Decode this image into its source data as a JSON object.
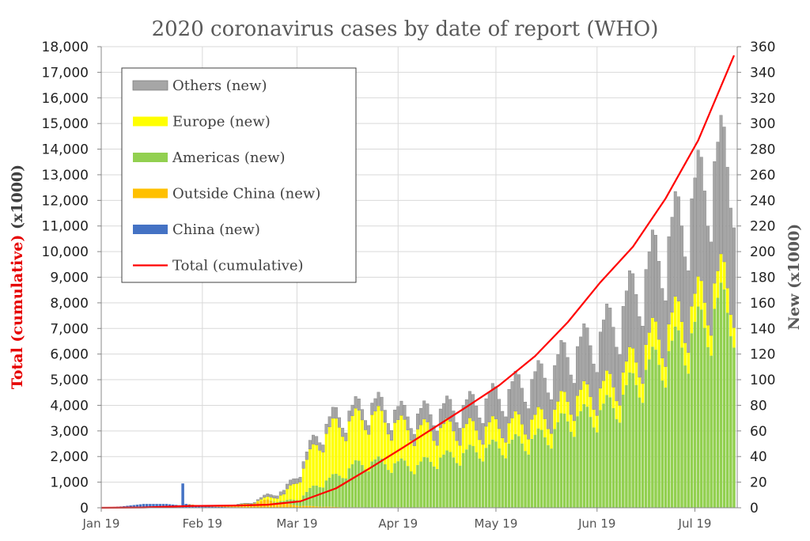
{
  "chart_data": {
    "type": "bar",
    "title": "2020 coronavirus cases by date of report (WHO)",
    "ylabel_left_part1": "Total (cumulative)",
    "ylabel_left_part2": " (x1000)",
    "ylabel_right": "New (x1000)",
    "ylim_left": [
      0,
      18000
    ],
    "ylim_right": [
      0,
      360
    ],
    "y_left_ticks": [
      "0",
      "1,000",
      "2,000",
      "3,000",
      "4,000",
      "5,000",
      "6,000",
      "7,000",
      "8,000",
      "9,000",
      "10,000",
      "11,000",
      "12,000",
      "13,000",
      "14,000",
      "15,000",
      "16,000",
      "17,000",
      "18,000"
    ],
    "y_right_ticks": [
      "0",
      "20",
      "40",
      "60",
      "80",
      "100",
      "120",
      "140",
      "160",
      "180",
      "200",
      "220",
      "240",
      "260",
      "280",
      "300",
      "320",
      "340",
      "360"
    ],
    "x_tick_labels": [
      "Jan 19",
      "Feb 19",
      "Mar 19",
      "Apr 19",
      "May 19",
      "Jun 19",
      "Jul 19"
    ],
    "x_tick_dates": [
      "2020-01-19",
      "2020-02-19",
      "2020-03-19",
      "2020-04-19",
      "2020-05-19",
      "2020-06-19",
      "2020-07-19"
    ],
    "x_range": [
      "2020-01-19",
      "2020-07-31"
    ],
    "grid": true,
    "legend_position": "top-left",
    "legend": [
      {
        "key": "others",
        "label": "Others (new)",
        "color": "#a6a6a6",
        "kind": "bar"
      },
      {
        "key": "europe",
        "label": "Europe (new)",
        "color": "#ffff00",
        "kind": "bar"
      },
      {
        "key": "americas",
        "label": "Americas (new)",
        "color": "#92d050",
        "kind": "bar"
      },
      {
        "key": "outside",
        "label": "Outside China (new)",
        "color": "#ffc000",
        "kind": "bar"
      },
      {
        "key": "china",
        "label": "China (new)",
        "color": "#4472c4",
        "kind": "bar"
      },
      {
        "key": "total",
        "label": "Total (cumulative)",
        "color": "#ff0000",
        "kind": "line"
      }
    ],
    "series_new_keyframes_x1000": {
      "dates": [
        "2020-01-19",
        "2020-01-25",
        "2020-02-01",
        "2020-02-08",
        "2020-02-12",
        "2020-02-13",
        "2020-02-14",
        "2020-02-20",
        "2020-02-27",
        "2020-03-05",
        "2020-03-10",
        "2020-03-15",
        "2020-03-20",
        "2020-03-25",
        "2020-03-31",
        "2020-04-05",
        "2020-04-10",
        "2020-04-15",
        "2020-04-20",
        "2020-04-25",
        "2020-04-30",
        "2020-05-05",
        "2020-05-10",
        "2020-05-15",
        "2020-05-20",
        "2020-05-25",
        "2020-05-31",
        "2020-06-05",
        "2020-06-10",
        "2020-06-15",
        "2020-06-20",
        "2020-06-25",
        "2020-06-30",
        "2020-07-05",
        "2020-07-10",
        "2020-07-15",
        "2020-07-20",
        "2020-07-25",
        "2020-07-31"
      ],
      "china": [
        0,
        1,
        3,
        3,
        2,
        19,
        3,
        1,
        0.5,
        0.3,
        0.1,
        0.1,
        0.1,
        0.1,
        0.1,
        0.1,
        0.1,
        0.1,
        0.1,
        0.1,
        0.1,
        0.1,
        0.1,
        0.1,
        0,
        0,
        0,
        0,
        0,
        0,
        0,
        0,
        0,
        0,
        0,
        0,
        0,
        0,
        0
      ],
      "outside": [
        0,
        0,
        0,
        0,
        0,
        0,
        0,
        0.2,
        1,
        3,
        6,
        3,
        1.5,
        1,
        0.5,
        0.3,
        0.3,
        0.3,
        0.3,
        0.3,
        0.3,
        0.3,
        0.3,
        0.3,
        0.3,
        0.3,
        0.3,
        0.3,
        0.3,
        0.3,
        0.3,
        0.3,
        0.3,
        0.3,
        0.3,
        0.3,
        0.3,
        0.3,
        0.3
      ],
      "americas": [
        0,
        0,
        0,
        0,
        0,
        0,
        0,
        0,
        0,
        0,
        0,
        2,
        6,
        17,
        24,
        32,
        36,
        35,
        34,
        33,
        38,
        40,
        43,
        46,
        48,
        51,
        54,
        59,
        70,
        72,
        76,
        82,
        97,
        110,
        120,
        130,
        140,
        155,
        160
      ],
      "europe": [
        0,
        0,
        0,
        0,
        0,
        0,
        0,
        0,
        0,
        0.2,
        2,
        5,
        18,
        33,
        40,
        36,
        37,
        34,
        30,
        28,
        24,
        22,
        19,
        17,
        16,
        16,
        15,
        15,
        16,
        16,
        17,
        17,
        18,
        20,
        21,
        21,
        21,
        20,
        20
      ],
      "others": [
        0,
        0,
        0,
        0,
        0,
        0,
        0,
        0,
        0.2,
        0.5,
        2,
        3,
        5,
        7,
        8,
        8,
        9,
        10,
        10,
        12,
        14,
        16,
        18,
        21,
        24,
        28,
        32,
        34,
        36,
        40,
        44,
        50,
        54,
        60,
        66,
        78,
        88,
        95,
        100
      ]
    },
    "series_total_cumulative_keyframes_x1000": {
      "dates": [
        "2020-01-19",
        "2020-02-01",
        "2020-02-15",
        "2020-03-01",
        "2020-03-10",
        "2020-03-20",
        "2020-03-31",
        "2020-04-10",
        "2020-04-20",
        "2020-04-30",
        "2020-05-10",
        "2020-05-20",
        "2020-05-31",
        "2020-06-10",
        "2020-06-20",
        "2020-06-30",
        "2020-07-10",
        "2020-07-20",
        "2020-07-31"
      ],
      "values": [
        0.1,
        12,
        70,
        88,
        120,
        250,
        760,
        1520,
        2310,
        3120,
        3940,
        4780,
        5920,
        7240,
        8800,
        10190,
        12070,
        14340,
        17660
      ]
    }
  }
}
